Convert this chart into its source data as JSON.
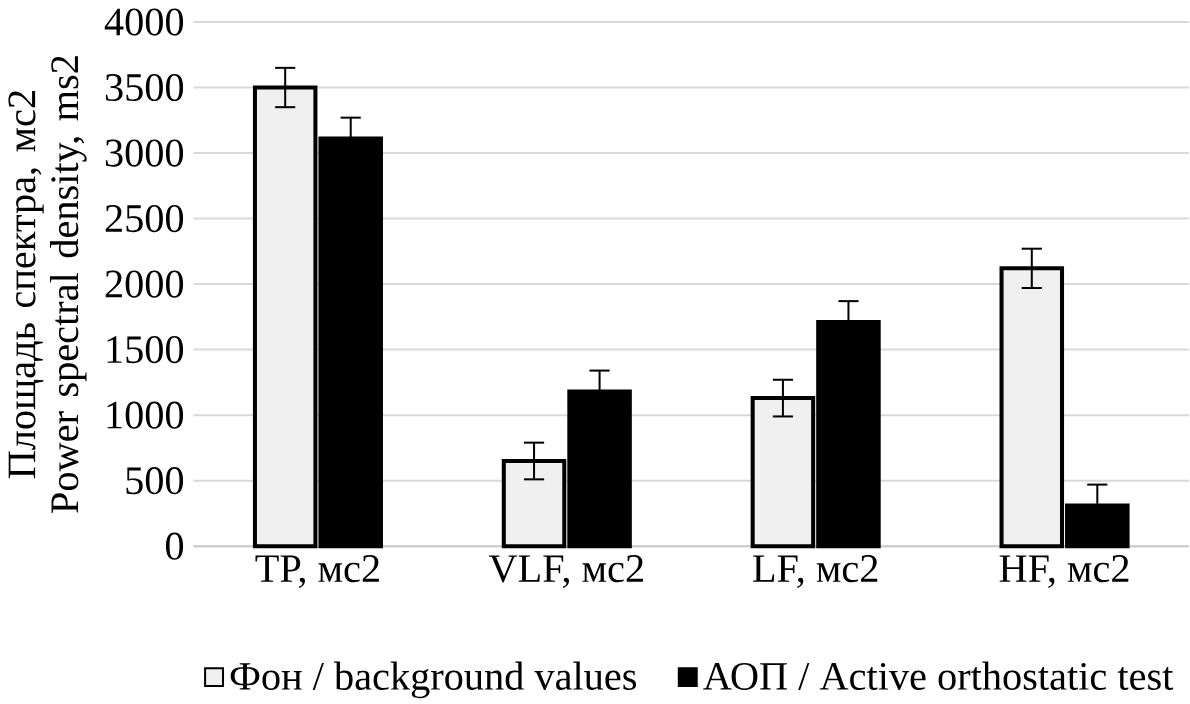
{
  "chart_data": {
    "type": "bar",
    "ylabel": "Площадь спектра, мс2\nPower spectral density, ms2",
    "categories": [
      "TP, мс2",
      "VLF, мс2",
      "LF, мс2",
      "HF, мс2"
    ],
    "series": [
      {
        "name": "Фон / background values",
        "color": "#f0f0f0",
        "values": [
          3500,
          650,
          1130,
          2120
        ],
        "errors": [
          150,
          140,
          140,
          150
        ]
      },
      {
        "name": "АОП / Active orthostatic test",
        "color": "#000000",
        "values": [
          3110,
          1180,
          1710,
          310
        ],
        "errors": [
          160,
          160,
          160,
          160
        ]
      }
    ],
    "ylim": [
      0,
      4000
    ],
    "yticks": [
      0,
      500,
      1000,
      1500,
      2000,
      2500,
      3000,
      3500,
      4000
    ],
    "grid": "y",
    "legend": "bottom"
  }
}
